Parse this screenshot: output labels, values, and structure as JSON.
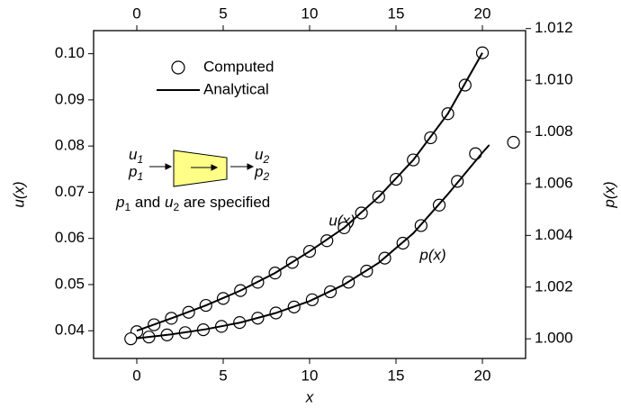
{
  "chart_data": {
    "type": "scatter-line",
    "xlabel": "x",
    "ylabel": "u(x)",
    "y2label": "p(x)",
    "xlim": [
      -2.5,
      22.5
    ],
    "xticks": [
      0,
      5,
      10,
      15,
      20
    ],
    "x2ticks": [
      0,
      5,
      10,
      15,
      20
    ],
    "ylim": [
      0.034,
      0.105
    ],
    "yticks": [
      0.04,
      0.05,
      0.06,
      0.07,
      0.08,
      0.09,
      {
        "value": 0.1,
        "label": "0.10"
      }
    ],
    "y2lim": [
      0.99924,
      1.01192
    ],
    "y2ticks": [
      {
        "value": 1.0,
        "label": "1.000"
      },
      1.002,
      1.004,
      1.006,
      1.008,
      {
        "value": 1.01,
        "label": "1.010"
      },
      1.012
    ],
    "series": [
      {
        "style": "circle",
        "axis": "y",
        "color": "#000000",
        "x": [
          0,
          1,
          2,
          3,
          4,
          5,
          6,
          7,
          8,
          9,
          10,
          11,
          12,
          13,
          14,
          15,
          16,
          17,
          18,
          19,
          20
        ],
        "values": [
          0.0398,
          0.0413,
          0.0427,
          0.044,
          0.0455,
          0.047,
          0.0487,
          0.0505,
          0.0525,
          0.0548,
          0.0572,
          0.0595,
          0.0623,
          0.0655,
          0.069,
          0.0728,
          0.077,
          0.0818,
          0.087,
          0.0932,
          0.1002
        ]
      },
      {
        "style": "circle",
        "axis": "y2",
        "color": "#000000",
        "x": [
          -0.35,
          0.7,
          1.75,
          2.8,
          3.85,
          4.9,
          5.95,
          7,
          8.05,
          9.1,
          10.15,
          11.2,
          12.25,
          13.3,
          14.35,
          15.4,
          16.45,
          17.5,
          18.55,
          19.6,
          21.8
        ],
        "values": [
          1.0,
          1.00007,
          1.00015,
          1.00024,
          1.00035,
          1.00048,
          1.00063,
          1.0008,
          1.001,
          1.00123,
          1.00151,
          1.00182,
          1.00219,
          1.00262,
          1.00312,
          1.0037,
          1.00438,
          1.00517,
          1.00609,
          1.00716,
          1.0076
        ]
      },
      {
        "style": "line",
        "axis": "y",
        "color": "#000000",
        "x": [
          0,
          2,
          4,
          6,
          8,
          10,
          12,
          14,
          16,
          18,
          20
        ],
        "values": [
          0.04,
          0.0427,
          0.0455,
          0.0487,
          0.0525,
          0.0572,
          0.0623,
          0.069,
          0.077,
          0.087,
          0.1002
        ]
      },
      {
        "style": "line",
        "axis": "y2",
        "color": "#000000",
        "x": [
          0,
          2,
          4,
          6,
          8,
          10,
          12,
          14,
          16,
          18,
          20,
          20.4
        ],
        "values": [
          1.00002,
          1.00017,
          1.00037,
          1.00063,
          1.00099,
          1.00146,
          1.0021,
          1.00294,
          1.00408,
          1.00559,
          1.0072,
          1.0075
        ]
      }
    ],
    "legend": [
      {
        "label": "Computed",
        "marker": "circle"
      },
      {
        "label": "Analytical",
        "marker": "line"
      }
    ],
    "curve_labels": [
      "u(x)",
      "p(x)"
    ],
    "inset": {
      "inlet": [
        {
          "symbol": "u",
          "subscript": "1"
        },
        {
          "symbol": "p",
          "subscript": "1"
        }
      ],
      "outlet": [
        {
          "symbol": "u",
          "subscript": "2"
        },
        {
          "symbol": "p",
          "subscript": "2"
        }
      ],
      "caption": [
        "p",
        "1",
        " and ",
        "u",
        "2",
        " are specified"
      ]
    }
  }
}
